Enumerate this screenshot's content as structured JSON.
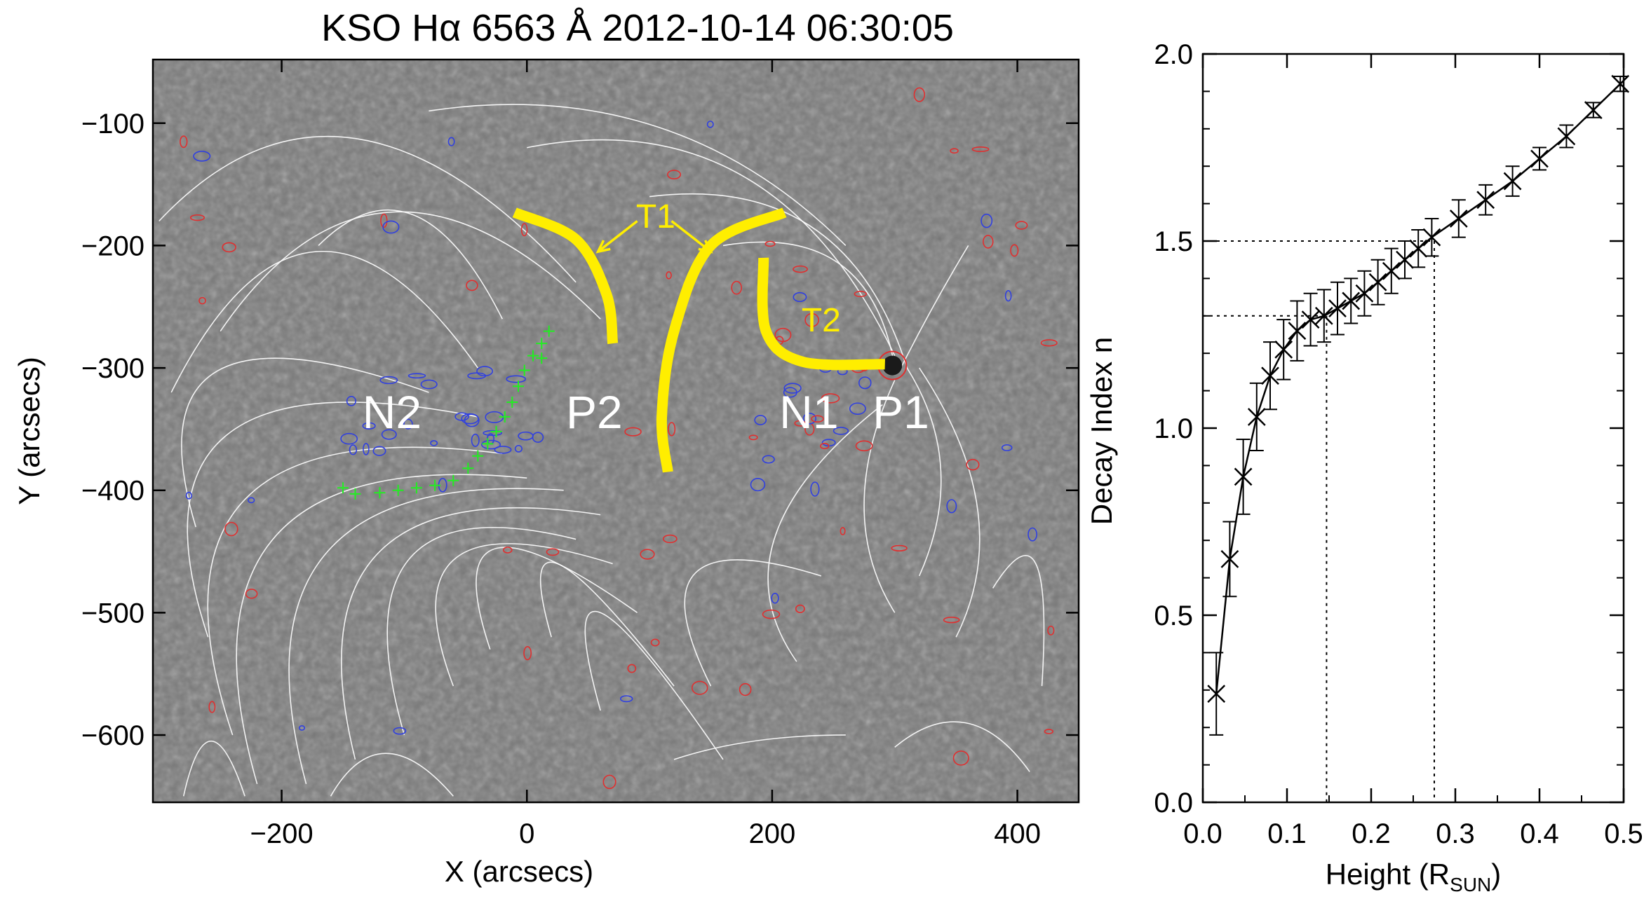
{
  "chart_data": [
    {
      "type": "image",
      "title": "KSO Hα 6563 Å  2012-10-14 06:30:05",
      "xlabel": "X (arcsecs)",
      "ylabel": "Y (arcsecs)",
      "xlim": [
        -305,
        450
      ],
      "ylim": [
        -655,
        -48
      ],
      "xticks": [
        -200,
        0,
        200,
        400
      ],
      "yticks": [
        -100,
        -200,
        -300,
        -400,
        -500,
        -600
      ],
      "background": "H-alpha grayscale solar image with white field lines, red (positive) and blue (negative) magnetic contours",
      "colors": {
        "highlight": "#ffee00",
        "positive_contour": "#e03030",
        "negative_contour": "#3040e0",
        "field_lines": "#ffffff",
        "polarity_inversion_line": "#22ee22"
      },
      "region_labels": [
        {
          "text": "N2",
          "x": -110,
          "y": -335
        },
        {
          "text": "P2",
          "x": 55,
          "y": -335
        },
        {
          "text": "N1",
          "x": 230,
          "y": -335
        },
        {
          "text": "P1",
          "x": 305,
          "y": -335
        }
      ],
      "tracks": [
        {
          "label": "T1",
          "points": [
            [
              -10,
              -173
            ],
            [
              40,
              -195
            ],
            [
              65,
              -240
            ],
            [
              70,
              -280
            ]
          ]
        },
        {
          "label": "T1",
          "points": [
            [
              210,
              -173
            ],
            [
              150,
              -200
            ],
            [
              120,
              -270
            ],
            [
              110,
              -340
            ],
            [
              115,
              -385
            ]
          ]
        },
        {
          "label": "T2",
          "points": [
            [
              193,
              -210
            ],
            [
              195,
              -270
            ],
            [
              225,
              -295
            ],
            [
              292,
              -297
            ]
          ]
        }
      ],
      "annotations": [
        {
          "text": "T1",
          "x": 105,
          "y": -175
        },
        {
          "text": "T2",
          "x": 240,
          "y": -260
        }
      ],
      "sunspot": {
        "x": 298,
        "y": -298
      },
      "pil_points": [
        [
          -150,
          -398
        ],
        [
          -140,
          -403
        ],
        [
          -120,
          -402
        ],
        [
          -105,
          -400
        ],
        [
          -90,
          -398
        ],
        [
          -75,
          -396
        ],
        [
          -60,
          -392
        ],
        [
          -48,
          -382
        ],
        [
          -40,
          -372
        ],
        [
          -32,
          -362
        ],
        [
          -25,
          -352
        ],
        [
          -18,
          -340
        ],
        [
          -12,
          -328
        ],
        [
          -7,
          -315
        ],
        [
          -2,
          -302
        ],
        [
          5,
          -290
        ],
        [
          12,
          -280
        ],
        [
          18,
          -270
        ],
        [
          12,
          -292
        ]
      ]
    },
    {
      "type": "line",
      "xlabel": "Height (R",
      "xlabel_sub": "SUN",
      "xlabel_close": ")",
      "ylabel": "Decay Index n",
      "xlim": [
        0.0,
        0.5
      ],
      "ylim": [
        0.0,
        2.0
      ],
      "xticks": [
        "0.0",
        "0.1",
        "0.2",
        "0.3",
        "0.4",
        "0.5"
      ],
      "yticks": [
        "0.0",
        "0.5",
        "1.0",
        "1.5",
        "2.0"
      ],
      "marker": "x",
      "series": [
        {
          "x": [
            0.016,
            0.032,
            0.048,
            0.064,
            0.08,
            0.096,
            0.112,
            0.128,
            0.144,
            0.16,
            0.176,
            0.192,
            0.208,
            0.224,
            0.24,
            0.256,
            0.272,
            0.304,
            0.336,
            0.368,
            0.4,
            0.432,
            0.464,
            0.496
          ],
          "y": [
            0.29,
            0.65,
            0.87,
            1.03,
            1.14,
            1.21,
            1.26,
            1.29,
            1.3,
            1.32,
            1.34,
            1.36,
            1.39,
            1.42,
            1.45,
            1.48,
            1.51,
            1.56,
            1.61,
            1.66,
            1.72,
            1.78,
            1.85,
            1.92
          ],
          "err": [
            0.11,
            0.1,
            0.1,
            0.09,
            0.09,
            0.08,
            0.08,
            0.07,
            0.07,
            0.07,
            0.06,
            0.06,
            0.06,
            0.06,
            0.05,
            0.05,
            0.05,
            0.05,
            0.04,
            0.04,
            0.03,
            0.03,
            0.02,
            0.02
          ]
        }
      ],
      "reference_lines": [
        {
          "n": 1.3,
          "height": 0.147
        },
        {
          "n": 1.5,
          "height": 0.275
        }
      ]
    }
  ]
}
